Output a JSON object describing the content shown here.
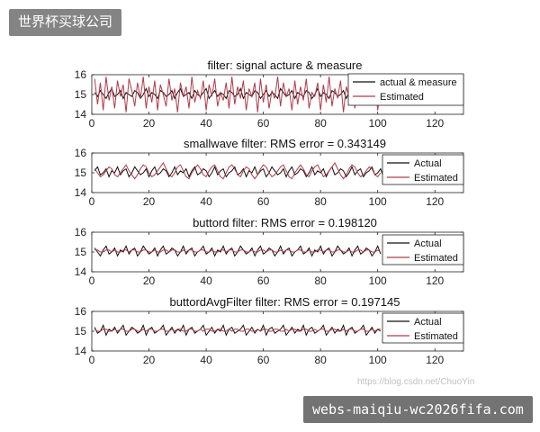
{
  "overlays": {
    "top_left_label": "世界杯买球公司",
    "bottom_right_label": "webs-maiqiu-wc2026fifa.com",
    "watermark_url": "https://blog.csdn.net/ChuoYin"
  },
  "colors": {
    "actual": "#111111",
    "estimated": "#b23a48",
    "axis": "#222222",
    "overlay_bg": "#6e6e6e"
  },
  "chart_data": [
    {
      "type": "line",
      "title": "filter: signal acture & measure",
      "xlim": [
        0,
        130
      ],
      "ylim": [
        14,
        16
      ],
      "xticks": [
        0,
        20,
        40,
        60,
        80,
        100,
        120
      ],
      "yticks": [
        14,
        15,
        16
      ],
      "legend": "top-right",
      "series": [
        {
          "name": "actual & measure",
          "color": "#111111",
          "x_start": 1,
          "values": [
            15.1,
            14.9,
            15.2,
            15.0,
            14.8,
            15.1,
            15.3,
            14.9,
            15.0,
            15.2,
            14.8,
            15.1,
            15.0,
            14.9,
            15.2,
            15.1,
            14.8,
            15.0,
            15.3,
            14.9,
            15.1,
            15.0,
            14.8,
            15.2,
            15.1,
            14.9,
            15.0,
            15.2,
            14.8,
            15.1,
            15.3,
            14.9,
            15.0,
            15.1,
            14.8,
            15.2,
            15.0,
            14.9,
            15.1,
            15.3,
            14.8,
            15.0,
            15.2,
            14.9,
            15.1,
            15.0,
            14.8,
            15.2,
            15.1,
            14.9,
            15.0,
            15.3,
            14.8,
            15.1,
            15.0,
            14.9,
            15.2,
            15.1,
            14.8,
            15.0,
            15.2,
            14.9,
            15.1,
            15.0,
            14.8,
            15.3,
            15.1,
            14.9,
            15.0,
            15.2,
            14.8,
            15.1,
            15.0,
            14.9,
            15.2,
            15.1,
            14.8,
            15.0,
            15.3,
            14.9,
            15.1,
            15.0,
            14.8,
            15.2,
            15.1,
            14.9,
            15.0,
            15.2,
            14.8,
            15.1,
            15.3,
            14.9,
            15.0,
            15.1,
            14.8,
            15.2,
            15.0,
            14.9,
            15.1,
            15.3,
            14.8,
            15.0,
            15.2
          ]
        },
        {
          "name": "Estimated",
          "color": "#b23a48",
          "x_start": 1,
          "values": [
            15.8,
            14.5,
            15.6,
            14.2,
            15.9,
            14.7,
            15.4,
            14.3,
            15.7,
            14.9,
            15.5,
            14.1,
            15.8,
            15.2,
            14.4,
            15.6,
            14.8,
            15.9,
            14.3,
            15.4,
            14.6,
            15.7,
            14.2,
            15.5,
            15.0,
            14.4,
            15.8,
            14.7,
            15.3,
            14.1,
            15.6,
            14.9,
            15.4,
            14.3,
            15.9,
            14.6,
            15.2,
            14.8,
            15.7,
            14.2,
            15.5,
            14.9,
            15.8,
            14.4,
            15.1,
            14.7,
            15.6,
            14.3,
            15.9,
            14.5,
            15.4,
            14.8,
            15.7,
            14.2,
            15.3,
            14.9,
            15.6,
            14.1,
            15.8,
            14.6,
            15.5,
            14.3,
            15.2,
            14.8,
            15.9,
            14.4,
            15.6,
            14.9,
            15.3,
            14.2,
            15.7,
            14.5,
            15.4,
            14.7,
            15.8,
            14.3,
            15.1,
            14.9,
            15.6,
            14.2,
            15.5,
            14.6,
            15.9,
            14.4,
            15.3,
            14.8,
            15.7,
            14.1,
            15.4,
            14.9,
            15.6,
            14.3,
            15.8,
            14.7,
            15.2,
            14.5,
            15.5,
            14.8,
            15.7,
            14.2,
            15.4,
            14.6,
            15.0
          ]
        }
      ]
    },
    {
      "type": "line",
      "title": "smallwave filter: RMS error = 0.343149",
      "xlim": [
        0,
        130
      ],
      "ylim": [
        14,
        16
      ],
      "xticks": [
        0,
        20,
        40,
        60,
        80,
        100,
        120
      ],
      "yticks": [
        14,
        15,
        16
      ],
      "legend": "top-right",
      "series": [
        {
          "name": "Actual",
          "color": "#111111",
          "x_start": 1,
          "values": [
            15.1,
            15.3,
            14.9,
            15.0,
            15.2,
            14.8,
            15.1,
            15.0,
            15.3,
            14.9,
            15.1,
            15.2,
            14.8,
            15.0,
            15.3,
            15.1,
            14.9,
            15.0,
            15.2,
            14.8,
            15.1,
            15.3,
            14.9,
            15.0,
            15.2,
            15.1,
            14.8,
            15.0,
            15.3,
            14.9,
            15.1,
            15.0,
            15.2,
            14.8,
            15.1,
            15.3,
            14.9,
            15.0,
            15.2,
            15.1,
            14.8,
            15.0,
            15.3,
            14.9,
            15.1,
            15.2,
            14.8,
            15.0,
            15.1,
            15.3,
            14.9,
            15.0,
            15.2,
            14.8,
            15.1,
            15.0,
            15.3,
            14.9,
            15.1,
            15.2,
            14.8,
            15.0,
            15.3,
            15.1,
            14.9,
            15.0,
            15.2,
            14.8,
            15.1,
            15.3,
            14.9,
            15.0,
            15.2,
            15.1,
            14.8,
            15.0,
            15.3,
            14.9,
            15.1,
            15.0,
            15.2,
            14.8,
            15.1,
            15.3,
            14.9,
            15.0,
            15.2,
            15.1,
            14.8,
            15.0,
            15.3,
            14.9,
            15.1,
            15.2,
            14.8,
            15.0,
            15.1,
            15.3,
            14.9,
            15.0,
            15.2,
            14.8,
            15.1
          ]
        },
        {
          "name": "Estimated",
          "color": "#b23a48",
          "x_start": 1,
          "values": [
            15.2,
            15.0,
            14.8,
            14.9,
            15.1,
            15.3,
            15.2,
            14.9,
            14.8,
            15.0,
            15.2,
            15.4,
            15.1,
            14.9,
            14.7,
            14.9,
            15.2,
            15.4,
            15.3,
            15.0,
            14.8,
            14.9,
            15.1,
            15.3,
            15.5,
            15.2,
            14.9,
            14.8,
            15.0,
            15.3,
            15.4,
            15.1,
            14.8,
            14.7,
            15.0,
            15.2,
            15.4,
            15.2,
            14.9,
            14.8,
            15.1,
            15.3,
            15.4,
            15.1,
            14.8,
            14.7,
            15.0,
            15.3,
            15.4,
            15.2,
            14.9,
            14.8,
            15.1,
            15.3,
            15.2,
            14.9,
            14.7,
            14.9,
            15.2,
            15.4,
            15.3,
            15.0,
            14.8,
            14.9,
            15.1,
            15.3,
            15.4,
            15.1,
            14.8,
            14.7,
            15.0,
            15.2,
            15.4,
            15.2,
            14.9,
            14.8,
            15.1,
            15.3,
            15.4,
            15.1,
            14.8,
            14.9,
            15.1,
            15.3,
            15.5,
            15.2,
            14.9,
            14.7,
            14.9,
            15.2,
            15.4,
            15.3,
            15.0,
            14.8,
            14.9,
            15.1,
            15.3,
            15.2,
            14.9,
            14.8,
            15.0
          ]
        }
      ]
    },
    {
      "type": "line",
      "title": "buttord filter: RMS error = 0.198120",
      "xlim": [
        0,
        130
      ],
      "ylim": [
        14,
        16
      ],
      "xticks": [
        0,
        20,
        40,
        60,
        80,
        100,
        120
      ],
      "yticks": [
        14,
        15,
        16
      ],
      "legend": "top-right",
      "series": [
        {
          "name": "Actual",
          "color": "#111111",
          "x_start": 1,
          "values": [
            15.2,
            15.0,
            14.8,
            15.1,
            15.3,
            14.9,
            15.0,
            15.2,
            14.8,
            15.1,
            15.0,
            15.3,
            14.9,
            15.1,
            15.2,
            14.8,
            15.0,
            15.3,
            15.1,
            14.9,
            15.0,
            15.2,
            14.8,
            15.1,
            15.3,
            14.9,
            15.0,
            15.2,
            15.1,
            14.8,
            15.0,
            15.3,
            14.9,
            15.1,
            15.2,
            14.8,
            15.0,
            15.1,
            15.3,
            14.9,
            15.0,
            15.2,
            14.8,
            15.1,
            15.0,
            15.3,
            14.9,
            15.1,
            15.2,
            14.8,
            15.0,
            15.3,
            15.1,
            14.9,
            15.0,
            15.2,
            14.8,
            15.1,
            15.3,
            14.9,
            15.0,
            15.2,
            15.1,
            14.8,
            15.0,
            15.3,
            14.9,
            15.1,
            15.2,
            14.8,
            15.0,
            15.1,
            15.3,
            14.9,
            15.0,
            15.2,
            14.8,
            15.1,
            15.0,
            15.3,
            14.9,
            15.1,
            15.2,
            14.8,
            15.0,
            15.3,
            15.1,
            14.9,
            15.0,
            15.2,
            14.8,
            15.1,
            15.3,
            14.9,
            15.0,
            15.2,
            15.1,
            14.8,
            15.0,
            15.3,
            14.9
          ]
        },
        {
          "name": "Estimated",
          "color": "#b23a48",
          "x_start": 1,
          "values": [
            15.1,
            15.1,
            15.0,
            15.0,
            15.1,
            15.1,
            15.0,
            15.1,
            15.0,
            15.0,
            15.1,
            15.1,
            15.0,
            15.1,
            15.1,
            15.0,
            15.0,
            15.1,
            15.1,
            15.0,
            15.0,
            15.1,
            15.0,
            15.0,
            15.1,
            15.1,
            15.0,
            15.1,
            15.1,
            15.0,
            15.0,
            15.1,
            15.0,
            15.1,
            15.1,
            15.0,
            15.0,
            15.1,
            15.1,
            15.0,
            15.0,
            15.1,
            15.0,
            15.0,
            15.1,
            15.1,
            15.0,
            15.1,
            15.1,
            15.0,
            15.0,
            15.1,
            15.1,
            15.0,
            15.0,
            15.1,
            15.0,
            15.0,
            15.1,
            15.1,
            15.0,
            15.1,
            15.1,
            15.0,
            15.0,
            15.1,
            15.0,
            15.1,
            15.1,
            15.0,
            15.0,
            15.1,
            15.1,
            15.0,
            15.0,
            15.1,
            15.0,
            15.0,
            15.1,
            15.1,
            15.0,
            15.1,
            15.1,
            15.0,
            15.0,
            15.1,
            15.1,
            15.0,
            15.0,
            15.1,
            15.0,
            15.0,
            15.1,
            15.1,
            15.0,
            15.1,
            15.1,
            15.0,
            15.0,
            15.1,
            15.0
          ]
        }
      ]
    },
    {
      "type": "line",
      "title": "buttordAvgFilter filter: RMS error = 0.197145",
      "xlim": [
        0,
        130
      ],
      "ylim": [
        14,
        16
      ],
      "xticks": [
        0,
        20,
        40,
        60,
        80,
        100,
        120
      ],
      "yticks": [
        14,
        15,
        16
      ],
      "legend": "top-right",
      "series": [
        {
          "name": "Actual",
          "color": "#111111",
          "x_start": 1,
          "values": [
            15.2,
            14.9,
            15.0,
            15.3,
            14.8,
            15.1,
            15.0,
            15.2,
            14.9,
            15.1,
            15.3,
            14.8,
            15.0,
            15.2,
            15.1,
            14.9,
            15.0,
            15.3,
            14.8,
            15.1,
            15.2,
            14.9,
            15.0,
            15.1,
            15.3,
            14.8,
            15.0,
            15.2,
            14.9,
            15.1,
            15.0,
            15.3,
            14.8,
            15.1,
            15.2,
            14.9,
            15.0,
            15.1,
            15.3,
            14.8,
            15.0,
            15.2,
            14.9,
            15.1,
            15.0,
            15.3,
            14.8,
            15.1,
            15.2,
            14.9,
            15.0,
            15.1,
            15.3,
            14.8,
            15.0,
            15.2,
            14.9,
            15.1,
            15.0,
            15.3,
            14.8,
            15.1,
            15.2,
            14.9,
            15.0,
            15.1,
            15.3,
            14.8,
            15.0,
            15.2,
            14.9,
            15.1,
            15.0,
            15.3,
            14.8,
            15.1,
            15.2,
            14.9,
            15.0,
            15.1,
            15.3,
            14.8,
            15.0,
            15.2,
            14.9,
            15.1,
            15.0,
            15.3,
            14.8,
            15.1,
            15.2,
            14.9,
            15.0,
            15.1,
            15.3,
            14.8,
            15.0,
            15.2,
            14.9,
            15.1,
            15.0
          ]
        },
        {
          "name": "Estimated",
          "color": "#b23a48",
          "x_start": 1,
          "values": [
            15.1,
            15.0,
            15.0,
            15.1,
            15.1,
            15.0,
            15.0,
            15.1,
            15.0,
            15.1,
            15.1,
            15.0,
            15.0,
            15.1,
            15.1,
            15.0,
            15.0,
            15.1,
            15.0,
            15.1,
            15.1,
            15.0,
            15.0,
            15.1,
            15.1,
            15.0,
            15.0,
            15.1,
            15.0,
            15.1,
            15.1,
            15.0,
            15.0,
            15.1,
            15.1,
            15.0,
            15.0,
            15.1,
            15.0,
            15.1,
            15.1,
            15.0,
            15.0,
            15.1,
            15.1,
            15.0,
            15.0,
            15.1,
            15.0,
            15.1,
            15.1,
            15.0,
            15.0,
            15.1,
            15.1,
            15.0,
            15.0,
            15.1,
            15.0,
            15.1,
            15.1,
            15.0,
            15.0,
            15.1,
            15.1,
            15.0,
            15.0,
            15.1,
            15.0,
            15.1,
            15.1,
            15.0,
            15.0,
            15.1,
            15.1,
            15.0,
            15.0,
            15.1,
            15.0,
            15.1,
            15.1,
            15.0,
            15.0,
            15.1,
            15.1,
            15.0,
            15.0,
            15.1,
            15.0,
            15.1,
            15.1,
            15.0,
            15.0,
            15.1,
            15.1,
            15.0,
            15.0,
            15.1,
            15.0,
            15.1,
            15.1
          ]
        }
      ]
    }
  ]
}
